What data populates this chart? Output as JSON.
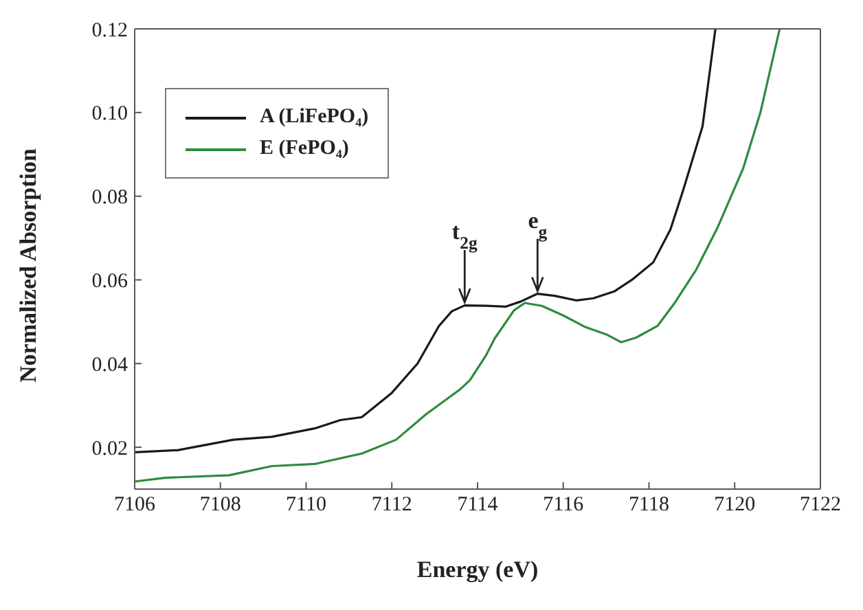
{
  "chart_data": {
    "type": "line",
    "xlabel": "Energy (eV)",
    "ylabel": "Normalized Absorption",
    "xlim": [
      7106,
      7122
    ],
    "xticks": [
      7106,
      7108,
      7110,
      7112,
      7114,
      7116,
      7118,
      7120,
      7122
    ],
    "ylim": [
      0.01,
      0.12
    ],
    "yticks": [
      0.02,
      0.04,
      0.06,
      0.08,
      {
        "value": 0.1,
        "label": "0.10"
      },
      0.12
    ],
    "legend": "top left",
    "marker": "none",
    "line_style": "solid",
    "annotations": [
      {
        "text": "t$_{2g}$",
        "x": 7113.7,
        "y": 0.054
      },
      {
        "text": "e$_{g}$",
        "x": 7115.4,
        "y": 0.0567
      }
    ],
    "series": [
      {
        "name": "A (LiFePO₄)",
        "color": "#1a1a1a",
        "x": [
          7106,
          7107,
          7108.3,
          7109.2,
          7110.2,
          7110.8,
          7111.3,
          7112,
          7112.6,
          7113.1,
          7113.4,
          7113.7,
          7114.2,
          7114.65,
          7115,
          7115.4,
          7115.8,
          7116.3,
          7116.7,
          7117.2,
          7117.6,
          7118.1,
          7118.5,
          7118.8,
          7119.25,
          7119.55
        ],
        "values": [
          0.0188,
          0.0193,
          0.0218,
          0.0225,
          0.0245,
          0.0265,
          0.0272,
          0.033,
          0.04,
          0.049,
          0.0525,
          0.0539,
          0.0538,
          0.0536,
          0.0548,
          0.0567,
          0.0562,
          0.0551,
          0.0556,
          0.0573,
          0.06,
          0.0642,
          0.072,
          0.0815,
          0.0967,
          0.12
        ]
      },
      {
        "name": "E (FePO₄)",
        "color": "#2e8b3e",
        "x": [
          7106,
          7106.7,
          7108.2,
          7109.2,
          7110.2,
          7111.3,
          7112.1,
          7112.8,
          7113.6,
          7113.82,
          7114.2,
          7114.4,
          7114.85,
          7115.1,
          7115.5,
          7116,
          7116.5,
          7117,
          7117.35,
          7117.7,
          7118.2,
          7118.6,
          7119.1,
          7119.6,
          7120.2,
          7120.6,
          7121.05
        ],
        "values": [
          0.0118,
          0.0127,
          0.0133,
          0.0155,
          0.016,
          0.0185,
          0.0218,
          0.0279,
          0.0339,
          0.036,
          0.042,
          0.046,
          0.0527,
          0.0545,
          0.0538,
          0.0515,
          0.0488,
          0.047,
          0.0451,
          0.0462,
          0.049,
          0.0545,
          0.0624,
          0.0725,
          0.0867,
          0.1,
          0.12
        ]
      }
    ]
  }
}
